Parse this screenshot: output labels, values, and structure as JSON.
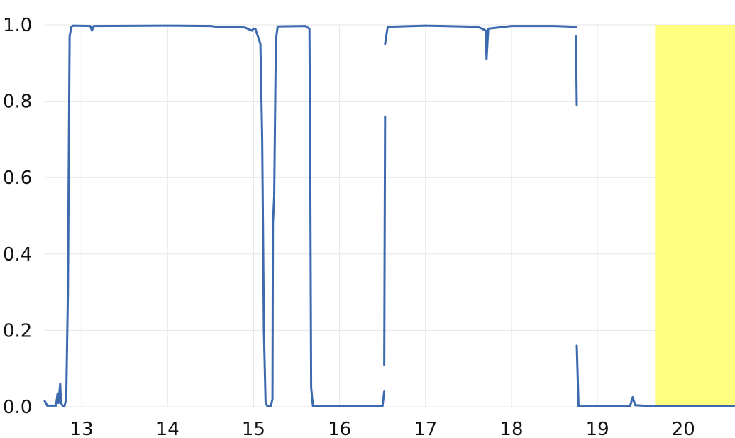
{
  "chart_data": {
    "type": "line",
    "title": "",
    "xlabel": "",
    "ylabel": "",
    "xlim": [
      12.57,
      20.6
    ],
    "ylim": [
      0.0,
      1.0
    ],
    "grid": true,
    "xticks": [
      13,
      14,
      15,
      16,
      17,
      18,
      19,
      20
    ],
    "xtick_labels": [
      "13",
      "14",
      "15",
      "16",
      "17",
      "18",
      "19",
      "20"
    ],
    "yticks": [
      0.0,
      0.2,
      0.4,
      0.6,
      0.8,
      1.0
    ],
    "ytick_labels": [
      "0.0",
      "0.2",
      "0.4",
      "0.6",
      "0.8",
      "1.0"
    ],
    "highlight_band": {
      "x_start": 19.67,
      "x_end": 20.6,
      "color": "#ffff80"
    },
    "colors": {
      "series": "#3d6aaf",
      "grid": "#e6e6e6",
      "background": "#ffffff"
    },
    "series": [
      {
        "segments": [
          [
            [
              12.57,
              0.015
            ],
            [
              12.6,
              0.003
            ],
            [
              12.7,
              0.003
            ],
            [
              12.72,
              0.035
            ],
            [
              12.73,
              0.01
            ],
            [
              12.75,
              0.06
            ],
            [
              12.76,
              0.01
            ],
            [
              12.78,
              0.002
            ],
            [
              12.8,
              0.002
            ],
            [
              12.82,
              0.02
            ],
            [
              12.84,
              0.3
            ],
            [
              12.86,
              0.97
            ],
            [
              12.88,
              0.995
            ],
            [
              12.9,
              0.998
            ],
            [
              13.1,
              0.997
            ],
            [
              13.12,
              0.985
            ],
            [
              13.14,
              0.997
            ],
            [
              14.0,
              0.998
            ],
            [
              14.5,
              0.997
            ],
            [
              14.6,
              0.994
            ],
            [
              14.7,
              0.995
            ],
            [
              14.9,
              0.993
            ],
            [
              14.98,
              0.985
            ],
            [
              15.0,
              0.99
            ],
            [
              15.02,
              0.99
            ],
            [
              15.08,
              0.95
            ],
            [
              15.1,
              0.7
            ],
            [
              15.12,
              0.2
            ],
            [
              15.14,
              0.01
            ],
            [
              15.16,
              0.002
            ],
            [
              15.2,
              0.002
            ],
            [
              15.22,
              0.02
            ],
            [
              15.225,
              0.48
            ],
            [
              15.24,
              0.55
            ],
            [
              15.26,
              0.96
            ],
            [
              15.28,
              0.996
            ],
            [
              15.6,
              0.997
            ],
            [
              15.65,
              0.99
            ],
            [
              15.66,
              0.6
            ],
            [
              15.67,
              0.05
            ],
            [
              15.69,
              0.002
            ],
            [
              16.0,
              0.001
            ],
            [
              16.5,
              0.002
            ],
            [
              16.52,
              0.04
            ]
          ],
          [
            [
              16.52,
              0.11
            ],
            [
              16.53,
              0.76
            ]
          ],
          [
            [
              16.53,
              0.95
            ],
            [
              16.56,
              0.995
            ],
            [
              17.0,
              0.998
            ],
            [
              17.6,
              0.995
            ],
            [
              17.66,
              0.99
            ],
            [
              17.7,
              0.985
            ],
            [
              17.71,
              0.91
            ],
            [
              17.73,
              0.99
            ],
            [
              18.0,
              0.997
            ],
            [
              18.5,
              0.997
            ],
            [
              18.75,
              0.995
            ]
          ],
          [
            [
              18.75,
              0.97
            ],
            [
              18.76,
              0.79
            ]
          ],
          [
            [
              18.76,
              0.16
            ],
            [
              18.78,
              0.002
            ],
            [
              19.2,
              0.002
            ],
            [
              19.38,
              0.002
            ],
            [
              19.41,
              0.025
            ],
            [
              19.44,
              0.004
            ],
            [
              19.6,
              0.002
            ],
            [
              20.6,
              0.002
            ]
          ]
        ]
      }
    ]
  }
}
